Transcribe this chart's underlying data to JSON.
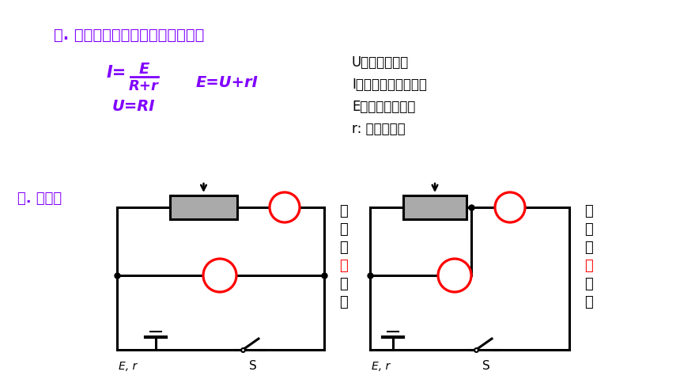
{
  "title1": "一. 基本原理：闭合电路的欧姆定律",
  "title2": "二. 电路图",
  "desc1": "U：路端电压；",
  "desc2": "I：通过电源的电流；",
  "desc3": "E：待测电动势；",
  "desc4": "r: 待测内阻；",
  "label_circuit1": [
    "电",
    "流",
    "表",
    "外",
    "接",
    "法"
  ],
  "label_circuit2": [
    "电",
    "流",
    "表",
    "内",
    "接",
    "法"
  ],
  "purple": "#8000FF",
  "red": "#FF0000",
  "black": "#000000",
  "dark_gray": "#808080",
  "bg": "#FFFFFF"
}
